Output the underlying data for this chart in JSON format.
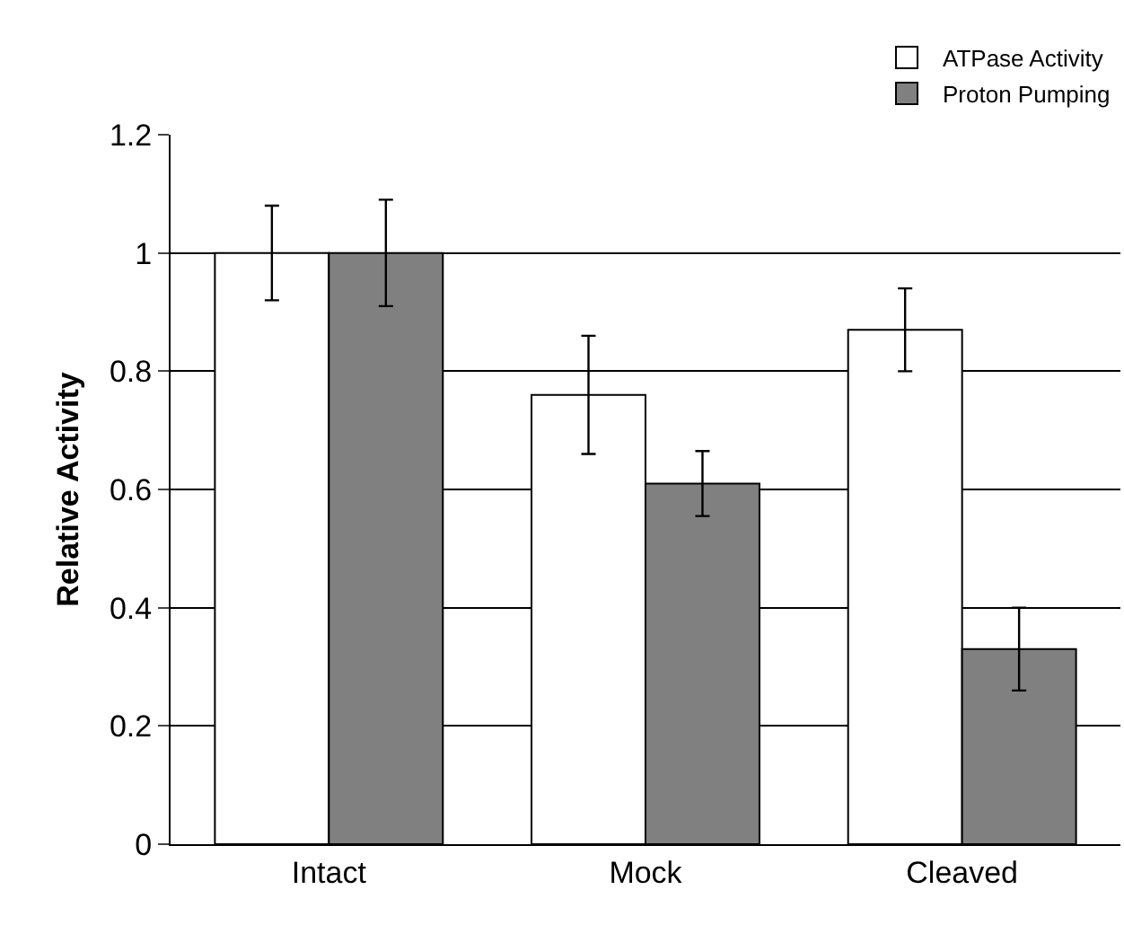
{
  "chart_data": {
    "type": "bar",
    "ylabel": "Relative Activity",
    "categories": [
      "Intact",
      "Mock",
      "Cleaved"
    ],
    "series": [
      {
        "name": "ATPase Activity",
        "color": "#ffffff",
        "values": [
          1,
          0.76,
          0.87
        ],
        "errors": [
          0.08,
          0.1,
          0.07
        ]
      },
      {
        "name": "Proton Pumping",
        "color": "#808080",
        "values": [
          1,
          0.61,
          0.33
        ],
        "errors": [
          0.09,
          0.055,
          0.07
        ]
      }
    ],
    "ylim": [
      0,
      1.2
    ],
    "yticks": [
      0,
      0.2,
      0.4,
      0.6,
      0.8,
      1,
      1.2
    ],
    "grid": "y",
    "legend": "top right"
  }
}
